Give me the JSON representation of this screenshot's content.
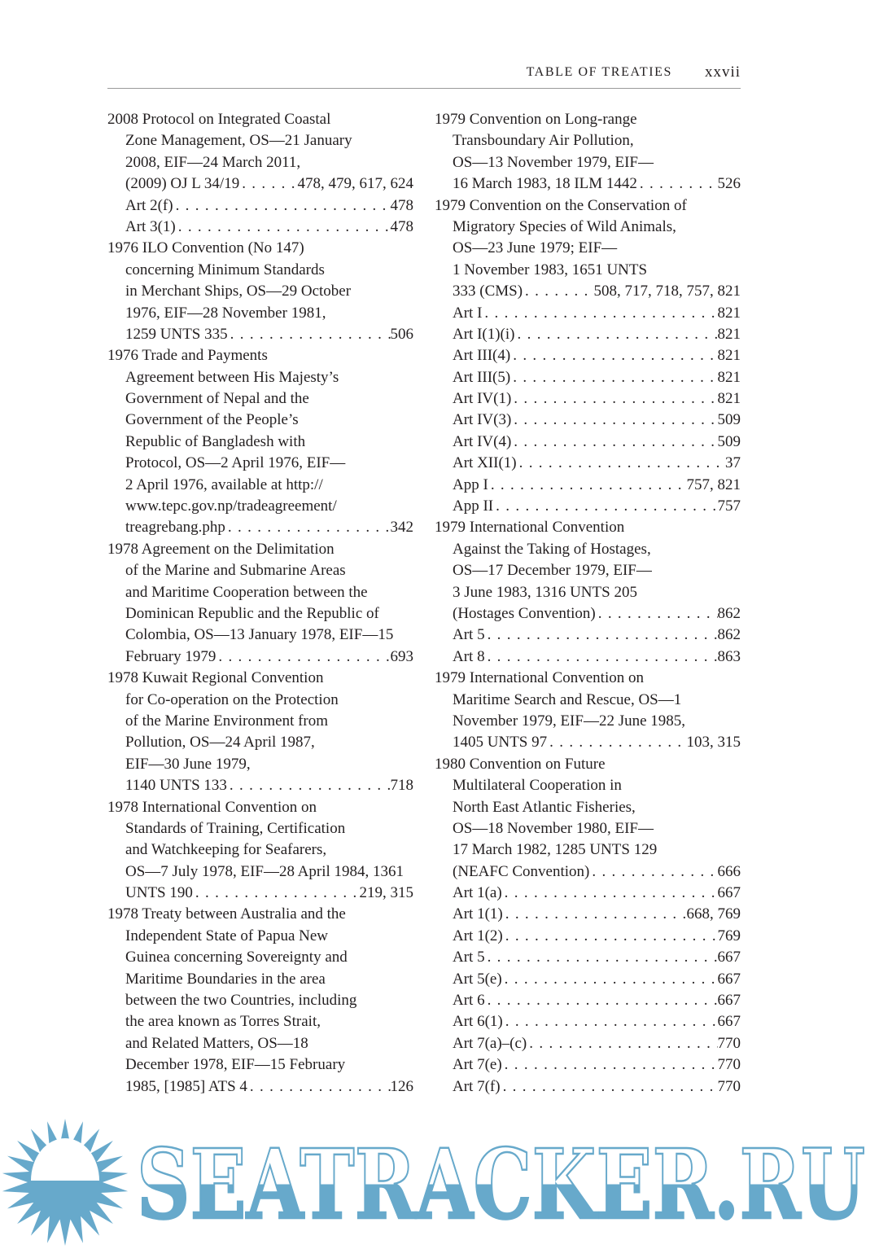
{
  "header": {
    "running_title": "TABLE OF TREATIES",
    "folio": "xxvii"
  },
  "columns": [
    {
      "entries": [
        {
          "lines": [
            {
              "text": "2008 Protocol on Integrated Coastal"
            },
            {
              "text": "Zone Management, OS—21 January"
            },
            {
              "text": "2008, EIF—24 March 2011,"
            },
            {
              "text": "(2009) OJ L 34/19",
              "pages": "478, 479, 617, 624"
            },
            {
              "text": "Art 2(f)",
              "pages": "478"
            },
            {
              "text": "Art 3(1)",
              "pages": "478"
            }
          ]
        },
        {
          "lines": [
            {
              "text": "1976 ILO Convention (No 147)"
            },
            {
              "text": "concerning Minimum Standards"
            },
            {
              "text": "in Merchant Ships, OS—29 October"
            },
            {
              "text": "1976, EIF—28 November 1981,"
            },
            {
              "text": "1259 UNTS 335",
              "pages": "506"
            }
          ]
        },
        {
          "lines": [
            {
              "text": "1976 Trade and Payments"
            },
            {
              "text": "Agreement between His Majesty’s"
            },
            {
              "text": "Government of Nepal and the"
            },
            {
              "text": "Government of the People’s"
            },
            {
              "text": "Republic of Bangladesh with"
            },
            {
              "text": "Protocol, OS—2 April 1976, EIF—"
            },
            {
              "text": "2 April 1976, available at http://"
            },
            {
              "text": "www.tepc.gov.np/tradeagreement/"
            },
            {
              "text": "treagrebang.php",
              "pages": "342"
            }
          ]
        },
        {
          "lines": [
            {
              "text": "1978 Agreement on the Delimitation"
            },
            {
              "text": "of the Marine and Submarine Areas"
            },
            {
              "text": "and Maritime Cooperation between the"
            },
            {
              "text": "Dominican Republic and the Republic of"
            },
            {
              "text": "Colombia, OS—13 January 1978, EIF—15"
            },
            {
              "text": "February 1979",
              "pages": "693"
            }
          ]
        },
        {
          "lines": [
            {
              "text": "1978 Kuwait Regional Convention"
            },
            {
              "text": "for Co-operation on the Protection"
            },
            {
              "text": "of the Marine Environment from"
            },
            {
              "text": "Pollution, OS—24 April 1987,"
            },
            {
              "text": "EIF—30 June 1979,"
            },
            {
              "text": "1140 UNTS 133",
              "pages": "718"
            }
          ]
        },
        {
          "lines": [
            {
              "text": "1978 International Convention on"
            },
            {
              "text": "Standards of Training, Certification"
            },
            {
              "text": "and Watchkeeping for Seafarers,"
            },
            {
              "text": "OS—7 July 1978, EIF—28 April 1984, 1361"
            },
            {
              "text": "UNTS 190",
              "pages": "219, 315"
            }
          ]
        },
        {
          "lines": [
            {
              "text": "1978 Treaty between Australia and the"
            },
            {
              "text": "Independent State of Papua New"
            },
            {
              "text": "Guinea concerning Sovereignty and"
            },
            {
              "text": "Maritime Boundaries in the area"
            },
            {
              "text": "between the two Countries, including"
            },
            {
              "text": "the area known as Torres Strait,"
            },
            {
              "text": "and Related Matters, OS—18"
            },
            {
              "text": "December 1978, EIF—15 February"
            },
            {
              "text": "1985, [1985] ATS 4",
              "pages": "126"
            }
          ]
        }
      ]
    },
    {
      "entries": [
        {
          "lines": [
            {
              "text": "1979 Convention on Long-range"
            },
            {
              "text": "Transboundary Air Pollution,"
            },
            {
              "text": "OS—13 November 1979, EIF—"
            },
            {
              "text": "16 March 1983, 18 ILM 1442",
              "pages": "526"
            }
          ]
        },
        {
          "lines": [
            {
              "text": "1979 Convention on the Conservation of"
            },
            {
              "text": "Migratory Species of Wild Animals,"
            },
            {
              "text": "OS—23 June 1979; EIF—"
            },
            {
              "text": "1 November 1983, 1651 UNTS"
            },
            {
              "text": "333 (CMS)",
              "pages": "508, 717, 718, 757, 821"
            },
            {
              "text": "Art I",
              "pages": "821"
            },
            {
              "text": "Art I(1)(i)",
              "pages": "821"
            },
            {
              "text": "Art III(4)",
              "pages": "821"
            },
            {
              "text": "Art III(5)",
              "pages": "821"
            },
            {
              "text": "Art IV(1)",
              "pages": "821"
            },
            {
              "text": "Art IV(3)",
              "pages": "509"
            },
            {
              "text": "Art IV(4)",
              "pages": "509"
            },
            {
              "text": "Art XII(1)",
              "pages": "37"
            },
            {
              "text": "App I",
              "pages": "757, 821"
            },
            {
              "text": "App II",
              "pages": "757"
            }
          ]
        },
        {
          "lines": [
            {
              "text": "1979 International Convention"
            },
            {
              "text": "Against the Taking of Hostages,"
            },
            {
              "text": "OS—17 December 1979, EIF—"
            },
            {
              "text": "3 June 1983, 1316 UNTS 205"
            },
            {
              "text": "(Hostages Convention)",
              "pages": "862"
            },
            {
              "text": "Art 5",
              "pages": "862"
            },
            {
              "text": "Art 8",
              "pages": "863"
            }
          ]
        },
        {
          "lines": [
            {
              "text": "1979 International Convention on"
            },
            {
              "text": "Maritime Search and Rescue, OS—1"
            },
            {
              "text": "November 1979, EIF—22 June 1985,"
            },
            {
              "text": "1405 UNTS 97",
              "pages": "103, 315"
            }
          ]
        },
        {
          "lines": [
            {
              "text": "1980 Convention on Future"
            },
            {
              "text": "Multilateral Cooperation in"
            },
            {
              "text": "North East Atlantic Fisheries,"
            },
            {
              "text": "OS—18 November 1980, EIF—"
            },
            {
              "text": "17 March 1982, 1285 UNTS 129"
            },
            {
              "text": "(NEAFC Convention)",
              "pages": "666"
            },
            {
              "text": "Art 1(a)",
              "pages": "667"
            },
            {
              "text": "Art 1(1)",
              "pages": "668, 769"
            },
            {
              "text": "Art 1(2)",
              "pages": "769"
            },
            {
              "text": "Art 5",
              "pages": "667"
            },
            {
              "text": "Art 5(e)",
              "pages": "667"
            },
            {
              "text": "Art 6",
              "pages": "667"
            },
            {
              "text": "Art 6(1)",
              "pages": "667"
            },
            {
              "text": "Art 7(a)–(c)",
              "pages": "770"
            },
            {
              "text": "Art 7(e)",
              "pages": "770"
            },
            {
              "text": "Art 7(f)",
              "pages": "770"
            }
          ]
        }
      ]
    }
  ],
  "watermark": {
    "text": "SEATRACKER.RU",
    "color": "#67a9cb"
  }
}
